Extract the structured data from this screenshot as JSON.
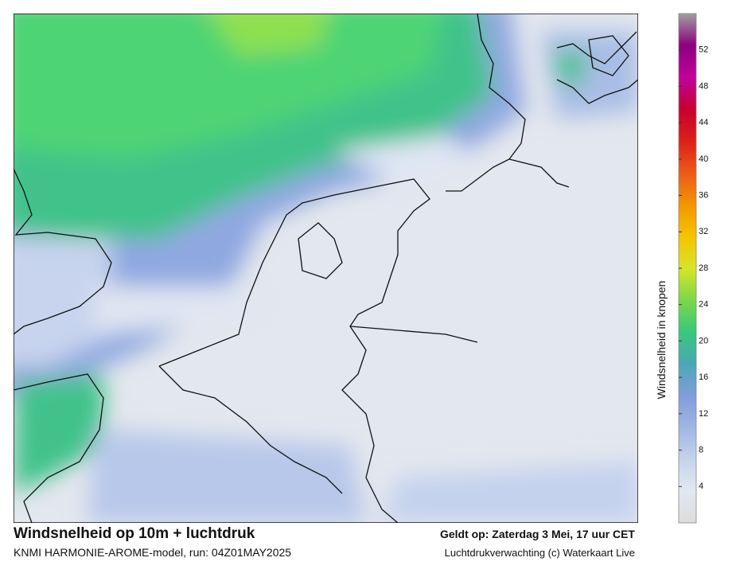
{
  "map": {
    "title": "Windsnelheid op 10m + luchtdruk",
    "subtitle": "KNMI HARMONIE-AROME-model, run: 04Z01MAY2025",
    "valid": "Geldt op: Zaterdag 3 Mei, 17 uur CET",
    "credit": "Luchtdrukverwachting (c) Waterkaart Live"
  },
  "colorbar": {
    "label": "Windsnelheid in knopen",
    "range": [
      0,
      56
    ],
    "ticks": [
      4,
      8,
      12,
      16,
      20,
      24,
      28,
      32,
      36,
      40,
      44,
      48,
      52
    ],
    "colors": [
      "#dcdcdc",
      "#e2e8f2",
      "#c4d3ec",
      "#9fb6e2",
      "#7f9ddc",
      "#4aa8b4",
      "#38c87c",
      "#7ad848",
      "#d8e428",
      "#f4c400",
      "#f49400",
      "#ec5a18",
      "#dc2018",
      "#c80030",
      "#c0009c",
      "#8c007c",
      "#a0a0a0"
    ]
  }
}
